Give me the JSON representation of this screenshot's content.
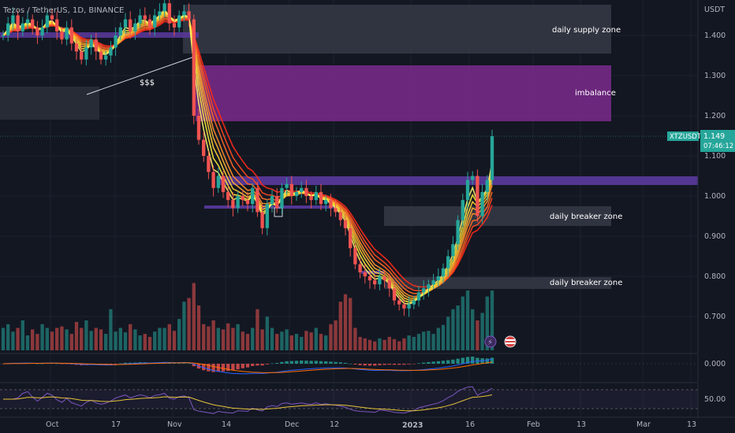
{
  "header": {
    "symbol_title": "Tezos / TetherUS, 1D, BINANCE"
  },
  "price_axis": {
    "currency": "USDT",
    "ticks": [
      "1.400",
      "1.300",
      "1.200",
      "1.100",
      "1.000",
      "0.900",
      "0.800",
      "0.700"
    ],
    "macd_ticks": [
      "0.000"
    ],
    "rsi_ticks": [
      "50.00"
    ]
  },
  "price_tag": {
    "symbol": "XTZUSDT",
    "price": "1.149",
    "countdown": "07:46:12"
  },
  "time_axis": {
    "labels": [
      "Oct",
      "17",
      "Nov",
      "14",
      "Dec",
      "12",
      "2023",
      "16",
      "Feb",
      "13",
      "Mar",
      "13"
    ]
  },
  "annotations": {
    "supply": "daily supply zone",
    "imbalance": "imbalance",
    "breaker1": "daily breaker zone",
    "breaker2": "daily breaker zone",
    "liquidity": "$$$"
  },
  "colors": {
    "background": "#131722",
    "candle_up": "#26a69a",
    "candle_down": "#ef5350",
    "imbalance_zone": "#7b2a8c",
    "purple_band": "#5b3a9e",
    "zone_gray": "#2a2e39",
    "rsi_line": "#7e57c2",
    "rsi_ma": "#e5c33a"
  },
  "chart_data": {
    "type": "candlestick",
    "ylim": [
      0.64,
      1.5
    ],
    "ribbon_colors": [
      "#ff2a1a",
      "#ff4a1f",
      "#ff6a25",
      "#ff8f2b",
      "#ffb030",
      "#ffd035",
      "#ffec3a",
      "#fff56a"
    ],
    "closes": [
      1.4,
      1.43,
      1.45,
      1.41,
      1.43,
      1.44,
      1.42,
      1.4,
      1.42,
      1.45,
      1.44,
      1.41,
      1.39,
      1.42,
      1.38,
      1.36,
      1.34,
      1.37,
      1.39,
      1.36,
      1.34,
      1.35,
      1.37,
      1.4,
      1.42,
      1.44,
      1.41,
      1.43,
      1.45,
      1.44,
      1.42,
      1.45,
      1.46,
      1.48,
      1.43,
      1.42,
      1.45,
      1.46,
      1.44,
      1.2,
      1.14,
      1.1,
      1.06,
      1.02,
      1.05,
      1.01,
      0.99,
      0.97,
      1.0,
      0.99,
      0.98,
      1.02,
      0.96,
      0.92,
      0.98,
      1.0,
      0.97,
      1.02,
      1.03,
      1.0,
      1.01,
      1.02,
      1.0,
      0.99,
      1.01,
      0.98,
      0.99,
      0.97,
      0.96,
      0.94,
      0.92,
      0.87,
      0.83,
      0.81,
      0.8,
      0.79,
      0.78,
      0.8,
      0.79,
      0.77,
      0.74,
      0.73,
      0.72,
      0.73,
      0.74,
      0.76,
      0.77,
      0.78,
      0.79,
      0.8,
      0.82,
      0.85,
      0.88,
      0.94,
      0.99,
      1.04,
      1.05,
      0.95,
      1.01,
      1.04,
      1.149
    ],
    "volumes": [
      0.3,
      0.35,
      0.25,
      0.3,
      0.4,
      0.2,
      0.28,
      0.22,
      0.35,
      0.3,
      0.25,
      0.3,
      0.32,
      0.28,
      0.22,
      0.38,
      0.3,
      0.4,
      0.26,
      0.3,
      0.28,
      0.22,
      0.55,
      0.25,
      0.3,
      0.24,
      0.35,
      0.28,
      0.2,
      0.22,
      0.18,
      0.25,
      0.3,
      0.3,
      0.35,
      0.26,
      0.42,
      0.65,
      0.7,
      0.9,
      0.6,
      0.35,
      0.32,
      0.4,
      0.3,
      0.28,
      0.36,
      0.3,
      0.35,
      0.25,
      0.22,
      0.3,
      0.55,
      0.28,
      0.45,
      0.3,
      0.22,
      0.25,
      0.28,
      0.2,
      0.22,
      0.18,
      0.26,
      0.24,
      0.3,
      0.22,
      0.2,
      0.35,
      0.4,
      0.65,
      0.75,
      0.7,
      0.3,
      0.18,
      0.16,
      0.14,
      0.12,
      0.16,
      0.14,
      0.18,
      0.15,
      0.12,
      0.16,
      0.2,
      0.18,
      0.22,
      0.25,
      0.26,
      0.22,
      0.3,
      0.34,
      0.45,
      0.55,
      0.6,
      0.72,
      0.8,
      0.55,
      0.4,
      0.5,
      0.72,
      0.8
    ]
  }
}
